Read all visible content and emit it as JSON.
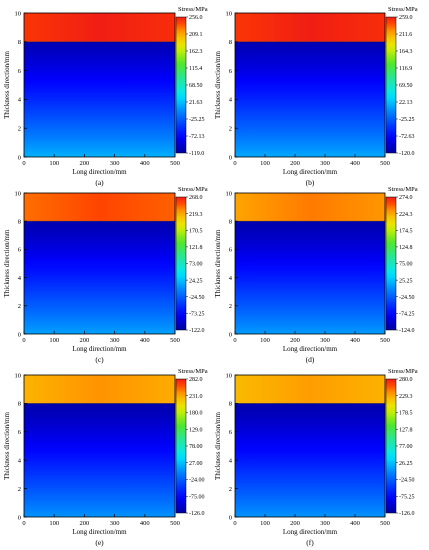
{
  "chart_data": [
    {
      "type": "heatmap",
      "panel_label": "(a)",
      "xlabel": "Long direction/mm",
      "ylabel": "Thickness direction/mm",
      "colorbar_title": "Stress/MPa",
      "xlim": [
        0,
        500
      ],
      "ylim": [
        0,
        10
      ],
      "x_ticks": [
        "0",
        "100",
        "200",
        "300",
        "400",
        "500"
      ],
      "y_ticks": [
        "0",
        "2",
        "4",
        "6",
        "8",
        "10"
      ],
      "colorbar_ticks": [
        "256.0",
        "209.1",
        "162.3",
        "115.4",
        "68.50",
        "21.63",
        "-25.25",
        "-72.13",
        "-119.0"
      ],
      "stress_range": [
        -119.0,
        256.0
      ],
      "interface_y": 8,
      "upper_layer_stress": 256.0,
      "lower_layer_top_stress": -110,
      "lower_layer_bottom_stress": 15
    },
    {
      "type": "heatmap",
      "panel_label": "(b)",
      "xlabel": "Long direction/mm",
      "ylabel": "Thickness direction/mm",
      "colorbar_title": "Stress/MPa",
      "xlim": [
        0,
        500
      ],
      "ylim": [
        0,
        10
      ],
      "x_ticks": [
        "0",
        "100",
        "200",
        "300",
        "400",
        "500"
      ],
      "y_ticks": [
        "0",
        "2",
        "4",
        "6",
        "8",
        "10"
      ],
      "colorbar_ticks": [
        "259.0",
        "211.6",
        "164.3",
        "116.9",
        "69.50",
        "22.13",
        "-25.25",
        "-72.63",
        "-120.0"
      ],
      "stress_range": [
        -120.0,
        259.0
      ],
      "interface_y": 8,
      "upper_layer_stress": 259.0,
      "lower_layer_top_stress": -112,
      "lower_layer_bottom_stress": 12
    },
    {
      "type": "heatmap",
      "panel_label": "(c)",
      "xlabel": "Long direction/mm",
      "ylabel": "Thickness direction/mm",
      "colorbar_title": "Stress/MPa",
      "xlim": [
        0,
        500
      ],
      "ylim": [
        0,
        10
      ],
      "x_ticks": [
        "0",
        "100",
        "200",
        "300",
        "400",
        "500"
      ],
      "y_ticks": [
        "0",
        "2",
        "4",
        "6",
        "8",
        "10"
      ],
      "colorbar_ticks": [
        "268.0",
        "219.3",
        "170.5",
        "121.8",
        "73.00",
        "24.25",
        "-24.50",
        "-73.25",
        "-122.0"
      ],
      "stress_range": [
        -122.0,
        268.0
      ],
      "interface_y": 8,
      "upper_layer_stress": 250.0,
      "lower_layer_top_stress": -115,
      "lower_layer_bottom_stress": 10
    },
    {
      "type": "heatmap",
      "panel_label": "(d)",
      "xlabel": "Long direction/mm",
      "ylabel": "Thickness direction/mm",
      "colorbar_title": "Stress/MPa",
      "xlim": [
        0,
        500
      ],
      "ylim": [
        0,
        10
      ],
      "x_ticks": [
        "0",
        "100",
        "200",
        "300",
        "400",
        "500"
      ],
      "y_ticks": [
        "0",
        "2",
        "4",
        "6",
        "8",
        "10"
      ],
      "colorbar_ticks": [
        "274.0",
        "224.3",
        "174.5",
        "124.8",
        "75.00",
        "25.25",
        "-24.50",
        "-74.25",
        "-124.0"
      ],
      "stress_range": [
        -124.0,
        274.0
      ],
      "interface_y": 8,
      "upper_layer_stress": 240.0,
      "lower_layer_top_stress": -118,
      "lower_layer_bottom_stress": 8
    },
    {
      "type": "heatmap",
      "panel_label": "(e)",
      "xlabel": "Long direction/mm",
      "ylabel": "Thickness direction/mm",
      "colorbar_title": "Stress/MPa",
      "xlim": [
        0,
        500
      ],
      "ylim": [
        0,
        10
      ],
      "x_ticks": [
        "0",
        "100",
        "200",
        "300",
        "400",
        "500"
      ],
      "y_ticks": [
        "0",
        "2",
        "4",
        "6",
        "8",
        "10"
      ],
      "colorbar_ticks": [
        "282.0",
        "231.0",
        "180.0",
        "129.0",
        "78.00",
        "27.00",
        "-24.00",
        "-75.00",
        "-126.0"
      ],
      "stress_range": [
        -126.0,
        282.0
      ],
      "interface_y": 8,
      "upper_layer_stress": 240.0,
      "lower_layer_top_stress": -120,
      "lower_layer_bottom_stress": 5
    },
    {
      "type": "heatmap",
      "panel_label": "(f)",
      "xlabel": "Long direction/mm",
      "ylabel": "Thickness direction/mm",
      "colorbar_title": "Stress/MPa",
      "xlim": [
        0,
        500
      ],
      "ylim": [
        0,
        10
      ],
      "x_ticks": [
        "0",
        "100",
        "200",
        "300",
        "400",
        "500"
      ],
      "y_ticks": [
        "0",
        "2",
        "4",
        "6",
        "8",
        "10"
      ],
      "colorbar_ticks": [
        "280.0",
        "229.3",
        "178.5",
        "127.8",
        "77.00",
        "26.25",
        "-24.50",
        "-75.25",
        "-126.0"
      ],
      "stress_range": [
        -126.0,
        280.0
      ],
      "interface_y": 8,
      "upper_layer_stress": 235.0,
      "lower_layer_top_stress": -120,
      "lower_layer_bottom_stress": 5
    }
  ]
}
